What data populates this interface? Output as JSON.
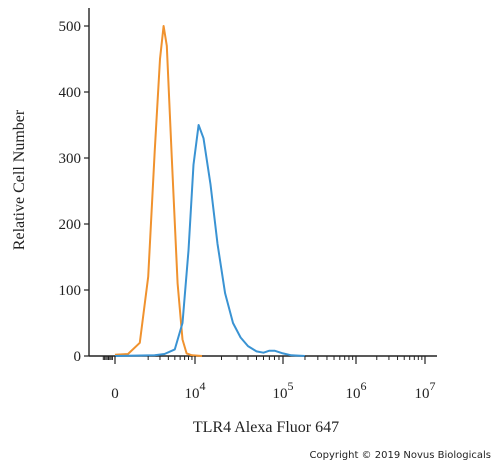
{
  "chart_data": {
    "type": "line",
    "xlabel": "TLR4 Alexa Fluor 647",
    "ylabel": "Relative Cell Number",
    "x_scale": "biexponential",
    "x_tick_labels": [
      {
        "base": "0",
        "exp": "",
        "value": 0
      },
      {
        "base": "10",
        "exp": "4",
        "value": 10000
      },
      {
        "base": "10",
        "exp": "5",
        "value": 100000
      },
      {
        "base": "10",
        "exp": "6",
        "value": 1000000
      },
      {
        "base": "10",
        "exp": "7",
        "value": 10000000
      }
    ],
    "y_ticks": [
      0,
      100,
      200,
      300,
      400,
      500
    ],
    "ylim": [
      0,
      530
    ],
    "grid": false,
    "legend": "none",
    "series": [
      {
        "color": "#f0922e",
        "points": [
          [
            0,
            2
          ],
          [
            1000,
            3
          ],
          [
            1500,
            20
          ],
          [
            2000,
            120
          ],
          [
            2500,
            310
          ],
          [
            3000,
            450
          ],
          [
            3400,
            500
          ],
          [
            3800,
            470
          ],
          [
            4500,
            300
          ],
          [
            5500,
            110
          ],
          [
            6500,
            25
          ],
          [
            7500,
            4
          ],
          [
            9000,
            1
          ],
          [
            12000,
            0
          ]
        ]
      },
      {
        "color": "#3a93d3",
        "points": [
          [
            0,
            0
          ],
          [
            2500,
            1
          ],
          [
            3500,
            3
          ],
          [
            5000,
            10
          ],
          [
            6500,
            50
          ],
          [
            8000,
            160
          ],
          [
            9500,
            290
          ],
          [
            11000,
            350
          ],
          [
            12500,
            330
          ],
          [
            15000,
            260
          ],
          [
            18000,
            170
          ],
          [
            22000,
            95
          ],
          [
            27000,
            50
          ],
          [
            33000,
            28
          ],
          [
            40000,
            15
          ],
          [
            50000,
            7
          ],
          [
            60000,
            5
          ],
          [
            70000,
            8
          ],
          [
            80000,
            8
          ],
          [
            100000,
            4
          ],
          [
            130000,
            1
          ],
          [
            200000,
            0
          ]
        ]
      }
    ]
  },
  "copyright": "Copyright © 2019 Novus Biologicals"
}
